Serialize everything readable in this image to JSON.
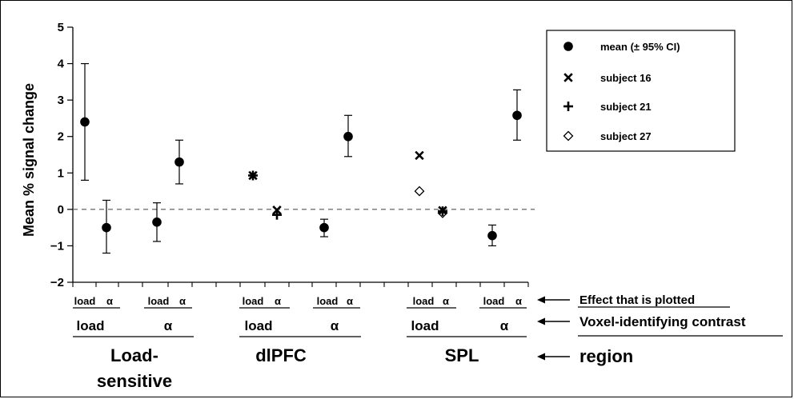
{
  "chart_data": {
    "type": "scatter",
    "ylabel": "Mean % signal change",
    "ylim": [
      -2,
      5
    ],
    "yticks": [
      "5",
      "4",
      "3",
      "2",
      "1",
      "0",
      "−1",
      "−2"
    ],
    "reference_line": 0,
    "points": [
      {
        "effect": "load",
        "contrast": "load",
        "region": "Load-sensitive",
        "mean": 2.4,
        "ci_low": 0.8,
        "ci_high": 4.0
      },
      {
        "effect": "α",
        "contrast": "load",
        "region": "Load-sensitive",
        "mean": -0.5,
        "ci_low": -1.2,
        "ci_high": 0.25
      },
      {
        "effect": "load",
        "contrast": "α",
        "region": "Load-sensitive",
        "mean": -0.35,
        "ci_low": -0.88,
        "ci_high": 0.18
      },
      {
        "effect": "α",
        "contrast": "α",
        "region": "Load-sensitive",
        "mean": 1.3,
        "ci_low": 0.7,
        "ci_high": 1.9
      },
      {
        "effect": "load",
        "contrast": "load",
        "region": "dlPFC",
        "subject16": 0.93,
        "subject21": 0.93
      },
      {
        "effect": "α",
        "contrast": "load",
        "region": "dlPFC",
        "subject16": -0.02,
        "subject21": -0.15
      },
      {
        "effect": "load",
        "contrast": "α",
        "region": "dlPFC",
        "mean": -0.5,
        "ci_low": -0.75,
        "ci_high": -0.27
      },
      {
        "effect": "α",
        "contrast": "α",
        "region": "dlPFC",
        "mean": 2.0,
        "ci_low": 1.45,
        "ci_high": 2.58
      },
      {
        "effect": "load",
        "contrast": "load",
        "region": "SPL",
        "subject16": 1.48,
        "subject27": 0.5
      },
      {
        "effect": "α",
        "contrast": "load",
        "region": "SPL",
        "subject16": -0.03,
        "subject21": -0.05,
        "subject27": -0.1
      },
      {
        "effect": "load",
        "contrast": "α",
        "region": "SPL",
        "mean": -0.72,
        "ci_low": -1.0,
        "ci_high": -0.43
      },
      {
        "effect": "α",
        "contrast": "α",
        "region": "SPL",
        "mean": 2.58,
        "ci_low": 1.9,
        "ci_high": 3.28
      }
    ],
    "legend": [
      {
        "marker": "circle",
        "label": "mean (± 95% CI)"
      },
      {
        "marker": "x",
        "label": "subject 16"
      },
      {
        "marker": "plus",
        "label": "subject 21"
      },
      {
        "marker": "diamond",
        "label": "subject 27"
      }
    ],
    "legend_position": "top-right",
    "effect_labels": [
      "load",
      "α",
      "load",
      "α",
      "load",
      "α",
      "load",
      "α",
      "load",
      "α",
      "load",
      "α"
    ],
    "contrast_labels": [
      "load",
      "α",
      "load",
      "α",
      "load",
      "α"
    ],
    "regions": [
      "Load-",
      "sensitive",
      "dlPFC",
      "SPL"
    ],
    "row_labels": {
      "effect": "Effect that is plotted",
      "contrast": "Voxel-identifying contrast",
      "region": "region"
    }
  }
}
